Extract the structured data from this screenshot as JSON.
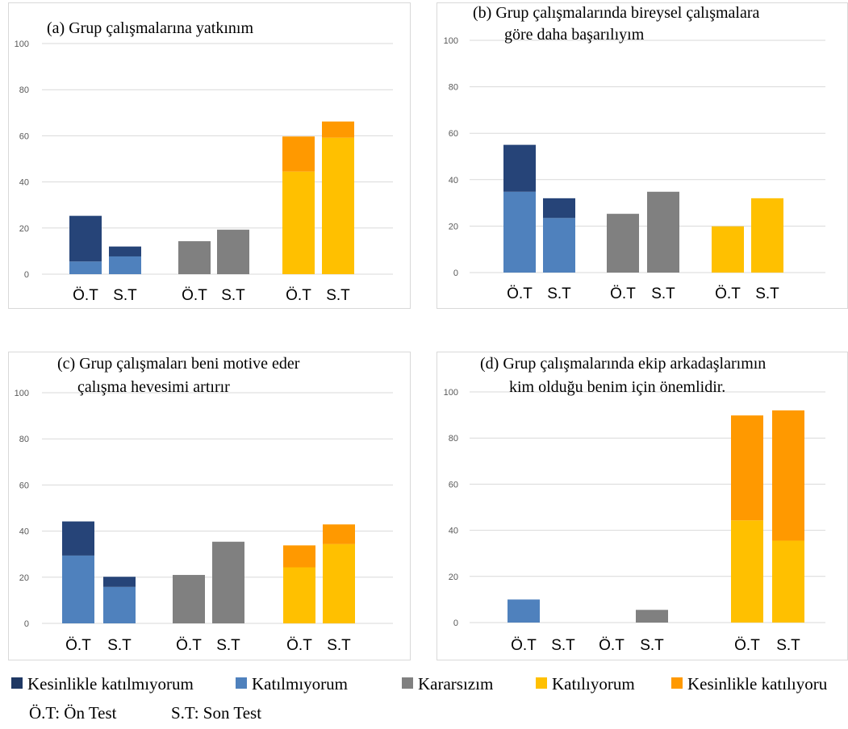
{
  "chart_data": [
    {
      "type": "bar",
      "stacked": true,
      "title": "(a) Grup çalışmalarına yatkınım",
      "categories": [
        "Ö.T",
        "S.T",
        "Ö.T",
        "S.T",
        "Ö.T",
        "S.T"
      ],
      "ylim": [
        0,
        100
      ],
      "yticks": [
        "0",
        "20",
        "40",
        "60",
        "80",
        "100"
      ],
      "grid": true,
      "series": [
        {
          "name": "Katılmıyorum",
          "values": [
            5.5,
            7.7,
            0,
            0,
            0,
            0
          ]
        },
        {
          "name": "Kesinlikle katılmıyorum",
          "values": [
            19.8,
            4.3,
            0,
            0,
            0,
            0
          ]
        },
        {
          "name": "Kararsızım",
          "values": [
            0,
            0,
            14.3,
            19.3,
            0,
            0
          ]
        },
        {
          "name": "Katılıyorum",
          "values": [
            0,
            0,
            0,
            0,
            44.5,
            59.2
          ]
        },
        {
          "name": "Kesinlikle katılıyorum",
          "values": [
            0,
            0,
            0,
            0,
            15.2,
            7
          ]
        }
      ]
    },
    {
      "type": "bar",
      "stacked": true,
      "title": "(b) Grup çalışmalarında bireysel çalışmalara göre daha başarılıyım",
      "categories": [
        "Ö.T",
        "S.T",
        "Ö.T",
        "S.T",
        "Ö.T",
        "S.T"
      ],
      "ylim": [
        0,
        100
      ],
      "yticks": [
        "0",
        "20",
        "40",
        "60",
        "80",
        "100"
      ],
      "grid": true,
      "series": [
        {
          "name": "Katılmıyorum",
          "values": [
            34.8,
            23.5,
            0,
            0,
            0,
            0
          ]
        },
        {
          "name": "Kesinlikle katılmıyorum",
          "values": [
            20.2,
            8.5,
            0,
            0,
            0,
            0
          ]
        },
        {
          "name": "Kararsızım",
          "values": [
            0,
            0,
            25.3,
            34.8,
            0,
            0
          ]
        },
        {
          "name": "Katılıyorum",
          "values": [
            0,
            0,
            0,
            0,
            19.9,
            32
          ],
          "_": ""
        },
        {
          "name": "Kesinlikle katılıyorum",
          "values": [
            0,
            0,
            0,
            0,
            0,
            0
          ]
        }
      ]
    },
    {
      "type": "bar",
      "stacked": true,
      "title": "(c) Grup çalışmaları beni motive eder çalışma hevesimi artırır",
      "categories": [
        "Ö.T",
        "S.T",
        "Ö.T",
        "S.T",
        "Ö.T",
        "S.T"
      ],
      "ylim": [
        0,
        100
      ],
      "yticks": [
        "0",
        "20",
        "40",
        "60",
        "80",
        "100"
      ],
      "grid": true,
      "series": [
        {
          "name": "Katılmıyorum",
          "values": [
            29.4,
            15.8,
            0,
            0,
            0,
            0
          ]
        },
        {
          "name": "Kesinlikle katılmıyorum",
          "values": [
            14.8,
            4.4,
            0,
            0,
            0,
            0
          ]
        },
        {
          "name": "Kararsızım",
          "values": [
            0,
            0,
            21,
            35.4,
            0,
            0
          ]
        },
        {
          "name": "Katılıyorum",
          "values": [
            0,
            0,
            0,
            0,
            24.3,
            34.4
          ]
        },
        {
          "name": "Kesinlikle katılıyorum",
          "values": [
            0,
            0,
            0,
            0,
            9.5,
            8.5
          ]
        }
      ]
    },
    {
      "type": "bar",
      "stacked": true,
      "title": "(d) Grup çalışmalarında ekip arkadaşlarımın kim olduğu benim için önemlidir.",
      "categories": [
        "Ö.T",
        "S.T",
        "Ö.T",
        "S.T",
        "Ö.T",
        "S.T"
      ],
      "ylim": [
        0,
        100
      ],
      "yticks": [
        "0",
        "20",
        "40",
        "60",
        "80",
        "100"
      ],
      "grid": true,
      "series": [
        {
          "name": "Katılmıyorum",
          "values": [
            10,
            0,
            0,
            0,
            0,
            0
          ]
        },
        {
          "name": "Kesinlikle katılmıyorum",
          "values": [
            0,
            0,
            0,
            0,
            0,
            0
          ]
        },
        {
          "name": "Kararsızım",
          "values": [
            0,
            0,
            0,
            5.5,
            0,
            0
          ]
        },
        {
          "name": "Katılıyorum",
          "values": [
            0,
            0,
            0,
            0,
            44.3,
            35.5
          ]
        },
        {
          "name": "Kesinlikle katılıyorum",
          "values": [
            0,
            0,
            0,
            0,
            45.5,
            56.5
          ]
        }
      ]
    }
  ],
  "legend": [
    {
      "label": "Kesinlikle katılmıyorum",
      "color": "#1f3864"
    },
    {
      "label": "Katılmıyorum",
      "color": "#4f81bd"
    },
    {
      "label": "Kararsızım",
      "color": "#808080"
    },
    {
      "label": "Katılıyorum",
      "color": "#ffc000"
    },
    {
      "label": "Kesinlikle katılıyoru",
      "color": "#ff9900"
    }
  ],
  "colors": {
    "Kesinlikle katılmıyorum": "#264478",
    "Katılmıyorum": "#4f81bd",
    "Kararsızım": "#808080",
    "Katılıyorum": "#ffc000",
    "Kesinlikle katılıyorum": "#ff9900"
  },
  "abbreviations": {
    "pre_test": "Ö.T: Ön Test",
    "post_test": "S.T: Son Test"
  }
}
